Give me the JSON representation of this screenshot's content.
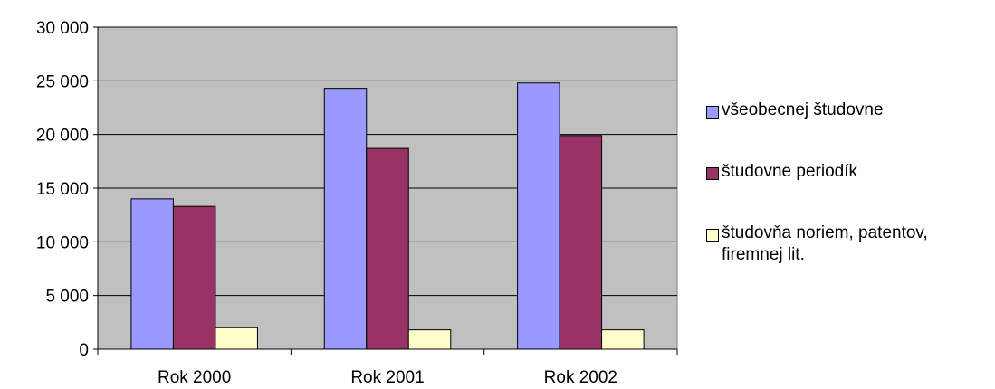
{
  "chart_data": {
    "type": "bar",
    "title": "",
    "xlabel": "",
    "ylabel": "",
    "categories": [
      "Rok 2000",
      "Rok 2001",
      "Rok 2002"
    ],
    "series": [
      {
        "name": "všeobecnej študovne",
        "color": "#9999ff",
        "values": [
          14000,
          24300,
          24800
        ]
      },
      {
        "name": "študovne periodík",
        "color": "#993366",
        "values": [
          13300,
          18700,
          19900
        ]
      },
      {
        "name": "študovňa noriem, patentov, firemnej lit.",
        "color": "#ffffcc",
        "values": [
          2000,
          1800,
          1800
        ]
      }
    ],
    "ylim": [
      0,
      30000
    ],
    "yticks": [
      0,
      5000,
      10000,
      15000,
      20000,
      25000,
      30000
    ],
    "ytick_labels": [
      "0",
      "5 000",
      "10 000",
      "15 000",
      "20 000",
      "25 000",
      "30 000"
    ],
    "plot_background": "#c0c0c0",
    "grid": true,
    "legend_position": "right"
  }
}
